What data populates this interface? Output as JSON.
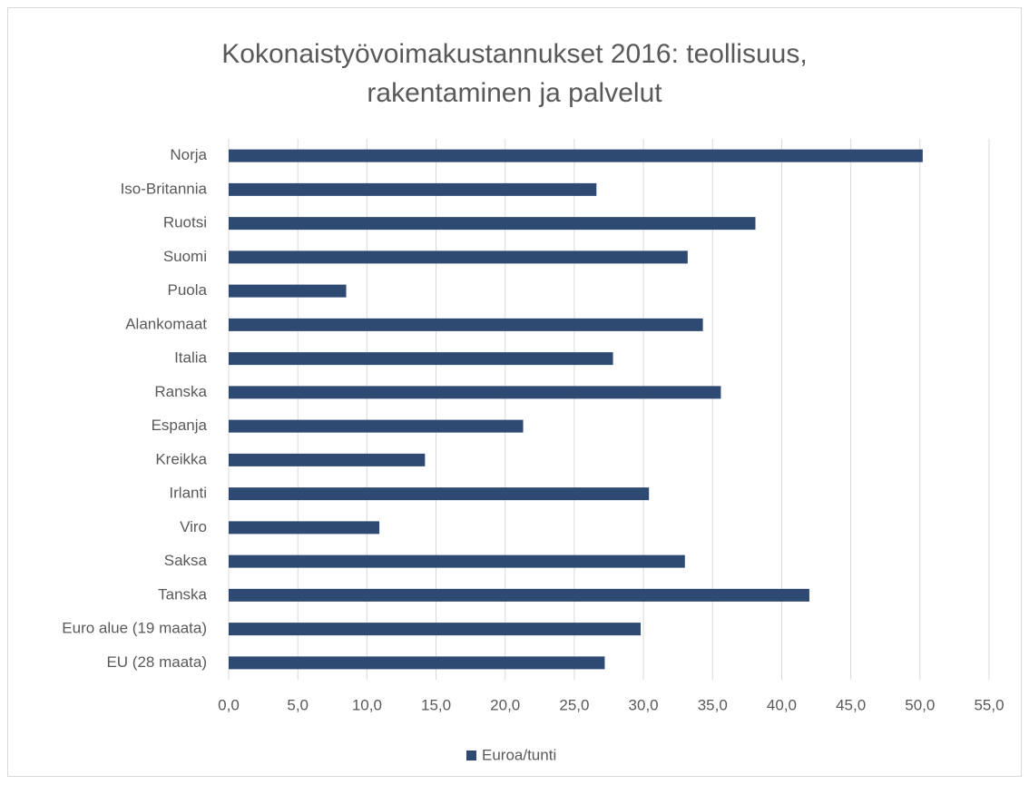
{
  "chart_data": {
    "type": "hbar",
    "title": "Kokonaistyövoimakustannukset 2016: teollisuus, rakentaminen ja palvelut",
    "categories": [
      "Norja",
      "Iso-Britannia",
      "Ruotsi",
      "Suomi",
      "Puola",
      "Alankomaat",
      "Italia",
      "Ranska",
      "Espanja",
      "Kreikka",
      "Irlanti",
      "Viro",
      "Saksa",
      "Tanska",
      "Euro alue (19 maata)",
      "EU (28 maata)"
    ],
    "series": [
      {
        "name": "Euroa/tunti",
        "color": "#2e4a72",
        "values": [
          50.2,
          26.6,
          38.1,
          33.2,
          8.5,
          34.3,
          27.8,
          35.6,
          21.3,
          14.2,
          30.4,
          10.9,
          33.0,
          42.0,
          29.8,
          27.2
        ]
      }
    ],
    "xlim": [
      0,
      55
    ],
    "xticks": [
      {
        "value": 0,
        "label": "0,0"
      },
      {
        "value": 5,
        "label": "5,0"
      },
      {
        "value": 10,
        "label": "10,0"
      },
      {
        "value": 15,
        "label": "15,0"
      },
      {
        "value": 20,
        "label": "20,0"
      },
      {
        "value": 25,
        "label": "25,0"
      },
      {
        "value": 30,
        "label": "30,0"
      },
      {
        "value": 35,
        "label": "35,0"
      },
      {
        "value": 40,
        "label": "40,0"
      },
      {
        "value": 45,
        "label": "45,0"
      },
      {
        "value": 50,
        "label": "50,0"
      },
      {
        "value": 55,
        "label": "55,0"
      }
    ],
    "grid": true,
    "legend": "bottom"
  }
}
